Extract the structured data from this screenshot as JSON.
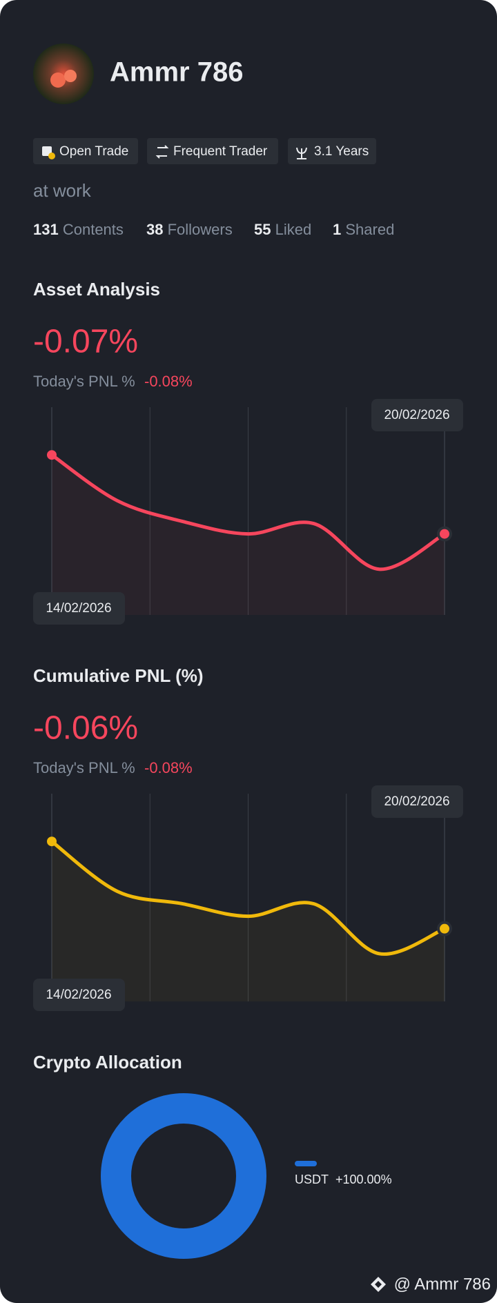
{
  "profile": {
    "name": "Ammr 786",
    "tags": [
      "Open Trade",
      "Frequent Trader",
      "3.1 Years"
    ],
    "bio": "at work",
    "stats": [
      {
        "value": 131,
        "label": "Contents"
      },
      {
        "value": 38,
        "label": "Followers"
      },
      {
        "value": 55,
        "label": "Liked"
      },
      {
        "value": 1,
        "label": "Shared"
      }
    ]
  },
  "chart_data": [
    {
      "type": "line",
      "title": "Asset Analysis",
      "headline": "-0.07%",
      "subtitle": "Today's PNL %",
      "subtitle_value": "-0.08%",
      "x": [
        "14/02/2026",
        null,
        null,
        null,
        null,
        null,
        "20/02/2026"
      ],
      "series": [
        {
          "color": "#f6465d",
          "values": [
            77,
            55,
            45,
            39,
            44,
            22,
            39
          ]
        }
      ],
      "ylim": [
        0,
        100
      ]
    },
    {
      "type": "line",
      "title": "Cumulative PNL (%)",
      "headline": "-0.06%",
      "subtitle": "Today's PNL %",
      "subtitle_value": "-0.08%",
      "x": [
        "14/02/2026",
        null,
        null,
        null,
        null,
        null,
        "20/02/2026"
      ],
      "series": [
        {
          "color": "#f0b90b",
          "values": [
            77,
            53,
            47,
            41,
            47,
            23,
            35
          ]
        }
      ],
      "ylim": [
        0,
        100
      ]
    },
    {
      "type": "pie",
      "title": "Crypto Allocation",
      "categories": [
        "USDT"
      ],
      "values": [
        100
      ],
      "value_labels": [
        "+100.00%"
      ],
      "colors": [
        "#1f6fd9"
      ]
    }
  ],
  "footer": "@ Ammr 786"
}
